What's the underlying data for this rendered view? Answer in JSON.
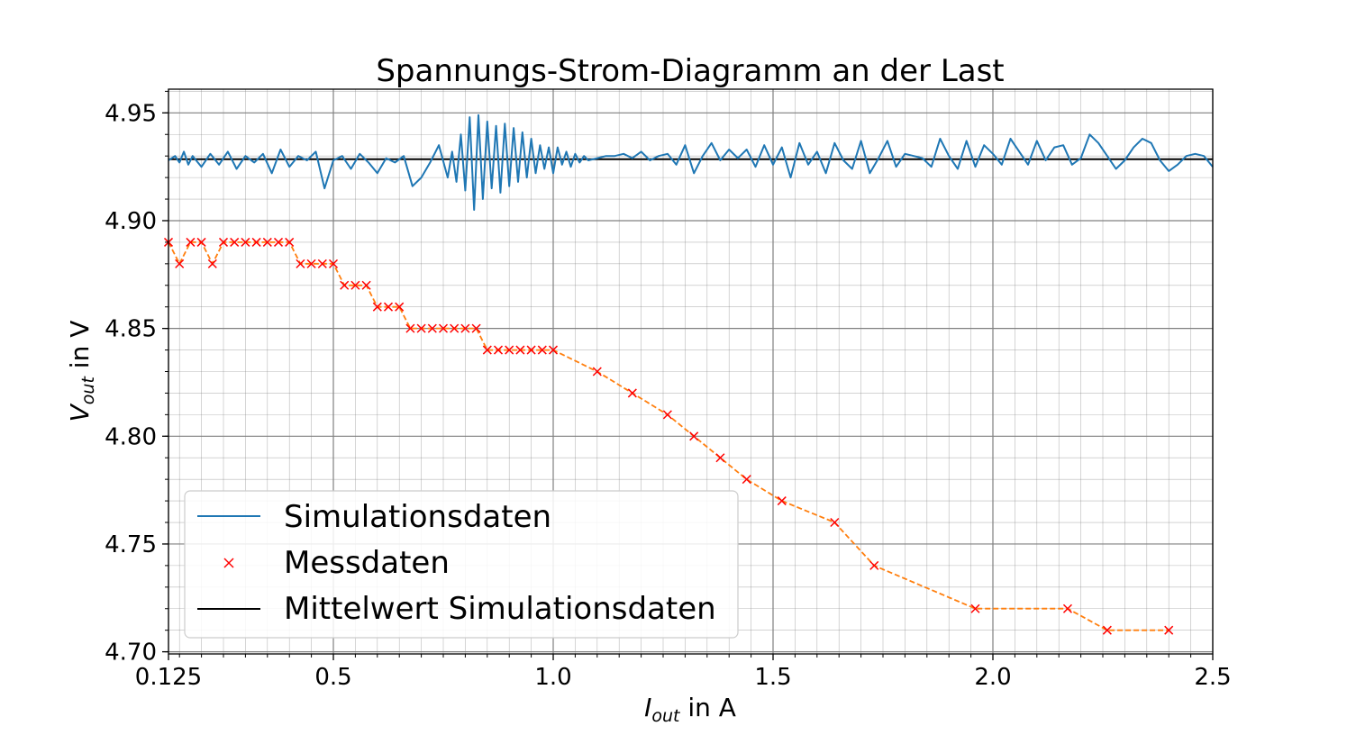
{
  "chart_data": {
    "type": "line",
    "title": "Spannungs-Strom-Diagramm an der Last",
    "xlabel": {
      "main": "I",
      "sub": "out",
      "rest": " in A"
    },
    "ylabel": {
      "main": "V",
      "sub": "out",
      "rest": " in V"
    },
    "xlim": [
      0.125,
      2.5
    ],
    "ylim": [
      4.699,
      4.961
    ],
    "xticks": [
      0.125,
      0.5,
      1.0,
      1.5,
      2.0,
      2.5
    ],
    "xtick_labels": [
      "0.125",
      "0.5",
      "1.0",
      "1.5",
      "2.0",
      "2.5"
    ],
    "yticks": [
      4.7,
      4.75,
      4.8,
      4.85,
      4.9,
      4.95
    ],
    "ytick_labels": [
      "4.70",
      "4.75",
      "4.80",
      "4.85",
      "4.90",
      "4.95"
    ],
    "grid": true,
    "legend_position": "lower-left",
    "colors": {
      "simulation": "#1f77b4",
      "measurement_marker": "#ff0000",
      "measurement_line": "#ff7f0e",
      "mean": "#000000",
      "grid": "#808080"
    },
    "series": [
      {
        "name": "Simulationsdaten",
        "kind": "line",
        "x": [
          0.125,
          0.14,
          0.15,
          0.16,
          0.17,
          0.18,
          0.2,
          0.22,
          0.24,
          0.26,
          0.28,
          0.3,
          0.32,
          0.34,
          0.36,
          0.38,
          0.4,
          0.42,
          0.44,
          0.46,
          0.48,
          0.5,
          0.52,
          0.54,
          0.56,
          0.58,
          0.6,
          0.62,
          0.64,
          0.66,
          0.68,
          0.7,
          0.72,
          0.74,
          0.76,
          0.77,
          0.78,
          0.79,
          0.8,
          0.81,
          0.82,
          0.83,
          0.84,
          0.85,
          0.86,
          0.87,
          0.88,
          0.89,
          0.9,
          0.91,
          0.92,
          0.93,
          0.94,
          0.95,
          0.96,
          0.97,
          0.98,
          0.99,
          1.0,
          1.01,
          1.02,
          1.03,
          1.04,
          1.05,
          1.06,
          1.07,
          1.08,
          1.1,
          1.12,
          1.14,
          1.16,
          1.18,
          1.2,
          1.22,
          1.24,
          1.26,
          1.28,
          1.3,
          1.32,
          1.34,
          1.36,
          1.38,
          1.4,
          1.42,
          1.44,
          1.46,
          1.48,
          1.5,
          1.52,
          1.54,
          1.56,
          1.58,
          1.6,
          1.62,
          1.64,
          1.66,
          1.68,
          1.7,
          1.72,
          1.74,
          1.76,
          1.78,
          1.8,
          1.82,
          1.84,
          1.86,
          1.88,
          1.9,
          1.92,
          1.94,
          1.96,
          1.98,
          2.0,
          2.02,
          2.04,
          2.06,
          2.08,
          2.1,
          2.12,
          2.14,
          2.16,
          2.18,
          2.2,
          2.22,
          2.24,
          2.26,
          2.28,
          2.3,
          2.32,
          2.34,
          2.36,
          2.38,
          2.4,
          2.42,
          2.44,
          2.46,
          2.48,
          2.5
        ],
        "y": [
          4.928,
          4.93,
          4.927,
          4.932,
          4.926,
          4.93,
          4.925,
          4.931,
          4.926,
          4.932,
          4.924,
          4.93,
          4.927,
          4.931,
          4.922,
          4.933,
          4.925,
          4.93,
          4.928,
          4.932,
          4.915,
          4.928,
          4.93,
          4.924,
          4.931,
          4.927,
          4.922,
          4.929,
          4.927,
          4.93,
          4.916,
          4.92,
          4.927,
          4.935,
          4.92,
          4.932,
          4.918,
          4.94,
          4.914,
          4.948,
          4.905,
          4.949,
          4.91,
          4.946,
          4.915,
          4.944,
          4.913,
          4.945,
          4.916,
          4.943,
          4.918,
          4.941,
          4.92,
          4.938,
          4.922,
          4.935,
          4.924,
          4.934,
          4.922,
          4.934,
          4.926,
          4.932,
          4.925,
          4.931,
          4.927,
          4.93,
          4.928,
          4.929,
          4.93,
          4.93,
          4.931,
          4.929,
          4.932,
          4.928,
          4.93,
          4.931,
          4.926,
          4.935,
          4.922,
          4.93,
          4.936,
          4.928,
          4.933,
          4.929,
          4.933,
          4.925,
          4.935,
          4.926,
          4.934,
          4.92,
          4.936,
          4.926,
          4.932,
          4.922,
          4.936,
          4.928,
          4.924,
          4.937,
          4.922,
          4.929,
          4.937,
          4.925,
          4.931,
          4.93,
          4.929,
          4.925,
          4.938,
          4.93,
          4.924,
          4.937,
          4.925,
          4.935,
          4.931,
          4.926,
          4.938,
          4.932,
          4.926,
          4.937,
          4.928,
          4.934,
          4.935,
          4.926,
          4.929,
          4.94,
          4.936,
          4.93,
          4.924,
          4.928,
          4.934,
          4.938,
          4.936,
          4.928,
          4.923,
          4.926,
          4.93,
          4.931,
          4.93,
          4.925
        ]
      },
      {
        "name": "Messdaten",
        "kind": "markers",
        "x": [
          0.125,
          0.15,
          0.175,
          0.2,
          0.225,
          0.25,
          0.275,
          0.3,
          0.325,
          0.35,
          0.375,
          0.4,
          0.425,
          0.45,
          0.475,
          0.5,
          0.525,
          0.55,
          0.575,
          0.6,
          0.625,
          0.65,
          0.675,
          0.7,
          0.725,
          0.75,
          0.775,
          0.8,
          0.825,
          0.85,
          0.875,
          0.9,
          0.925,
          0.95,
          0.975,
          1.0,
          1.1,
          1.18,
          1.26,
          1.32,
          1.38,
          1.44,
          1.52,
          1.64,
          1.73,
          1.96,
          2.17,
          2.26,
          2.4
        ],
        "y": [
          4.89,
          4.88,
          4.89,
          4.89,
          4.88,
          4.89,
          4.89,
          4.89,
          4.89,
          4.89,
          4.89,
          4.89,
          4.88,
          4.88,
          4.88,
          4.88,
          4.87,
          4.87,
          4.87,
          4.86,
          4.86,
          4.86,
          4.85,
          4.85,
          4.85,
          4.85,
          4.85,
          4.85,
          4.85,
          4.84,
          4.84,
          4.84,
          4.84,
          4.84,
          4.84,
          4.84,
          4.83,
          4.82,
          4.81,
          4.8,
          4.79,
          4.78,
          4.77,
          4.76,
          4.74,
          4.72,
          4.72,
          4.71,
          4.71
        ]
      },
      {
        "name": "Mittelwert Simulationsdaten",
        "kind": "hline",
        "y": 4.9285
      }
    ]
  }
}
